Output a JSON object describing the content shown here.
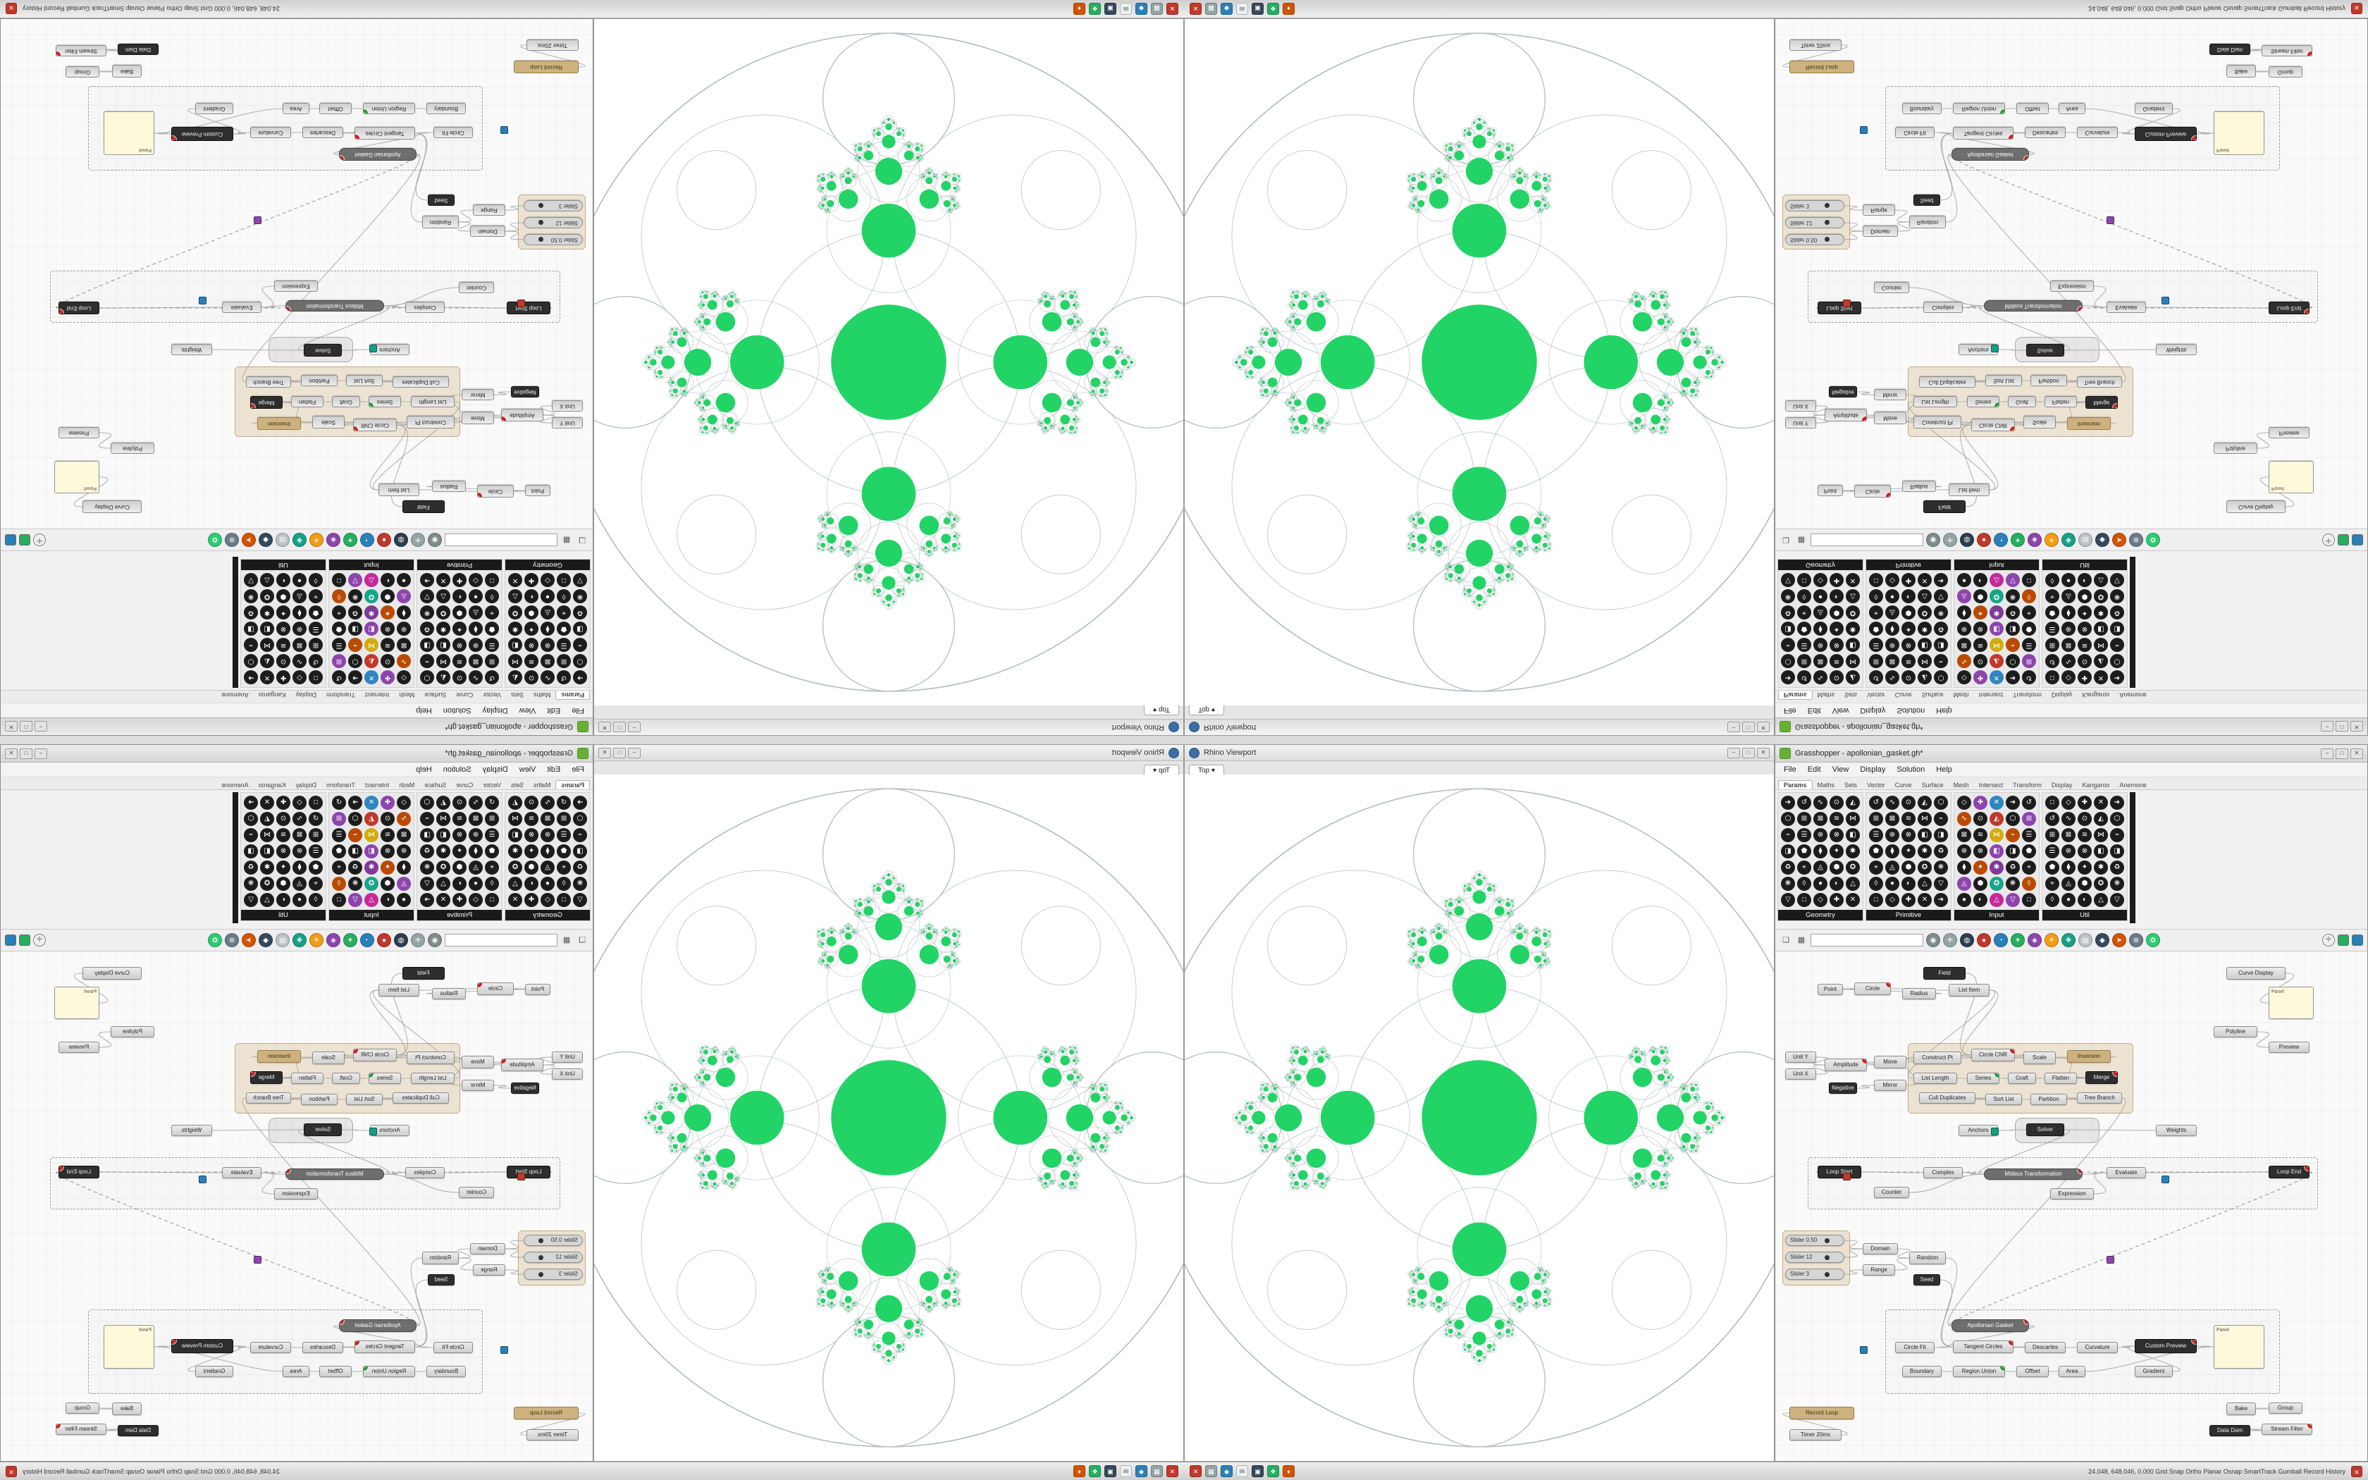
{
  "os_strip": {
    "taskbar_icons": [
      {
        "name": "app-red",
        "color": "#c0392b",
        "glyph": "✕"
      },
      {
        "name": "app-gray",
        "color": "#95a5a6",
        "glyph": "▦"
      },
      {
        "name": "app-blue",
        "color": "#2980b9",
        "glyph": "◆"
      },
      {
        "name": "app-white",
        "color": "#ecf0f1",
        "glyph": "✉",
        "fg": "#555"
      },
      {
        "name": "app-navy",
        "color": "#34495e",
        "glyph": "▣"
      },
      {
        "name": "app-green",
        "color": "#27ae60",
        "glyph": "❖"
      },
      {
        "name": "app-orange",
        "color": "#d35400",
        "glyph": "♦"
      }
    ],
    "status_text": "24.048, 648.046, 0.000    Grid Snap   Ortho   Planar   Osnap   SmartTrack   Gumball   Record History",
    "close_glyph": "✕"
  },
  "rhino": {
    "window_title": "Rhino Viewport",
    "viewport_tab": "Top",
    "tab_caret": "▾",
    "window_buttons": [
      "–",
      "□",
      "✕"
    ]
  },
  "fractal": {
    "green": "#22d366",
    "ring_color": "#c7cdd0",
    "outer_ring_color": "#b4bbbe",
    "depth": 4
  },
  "grasshopper": {
    "window_title": "Grasshopper - apollonian_gasket.gh*",
    "window_buttons": [
      "–",
      "□",
      "✕"
    ],
    "menu": [
      "File",
      "Edit",
      "View",
      "Display",
      "Solution",
      "Help"
    ],
    "tabs": [
      "Params",
      "Maths",
      "Sets",
      "Vector",
      "Curve",
      "Surface",
      "Mesh",
      "Intersect",
      "Transform",
      "Display",
      "Kangaroo",
      "Anemone"
    ],
    "palette": {
      "groups": [
        {
          "label": "Geometry",
          "rows": 7,
          "cols": 5,
          "style": "dark"
        },
        {
          "label": "Primitive",
          "rows": 7,
          "cols": 5,
          "style": "dark"
        },
        {
          "label": "Input",
          "rows": 7,
          "cols": 5,
          "style": "color"
        },
        {
          "label": "Util",
          "rows": 7,
          "cols": 5,
          "style": "dark"
        }
      ],
      "glyphs": [
        "●",
        "◐",
        "△",
        "▽",
        "□",
        "◇",
        "✚",
        "✕",
        "➔",
        "↺",
        "∿",
        "⊙",
        "◭",
        "⬡",
        "⊞",
        "⊠",
        "≋",
        "⋈",
        "⌁",
        "☰",
        "⊕",
        "⊗",
        "◧",
        "◨",
        "⬟",
        "⧫",
        "✦",
        "✱",
        "♻",
        "⌖",
        "◬",
        "⬢",
        "✪",
        "❋",
        "◊"
      ],
      "color_set": [
        "#c4299b",
        "#8e44ad",
        "#2e86c1",
        "#17a589",
        "#d4ac0d",
        "#ba4a00",
        "#7d3c98",
        "#c0392b"
      ]
    },
    "toolbar": {
      "open_glyph": "❏",
      "save_glyph": "▦",
      "search_value": "",
      "buttons": [
        {
          "color": "#7f8c8d",
          "glyph": "◉"
        },
        {
          "color": "#95a5a6",
          "glyph": "✛"
        },
        {
          "color": "#2c3e50",
          "glyph": "◍"
        },
        {
          "color": "#c0392b",
          "glyph": "●"
        },
        {
          "color": "#2980b9",
          "glyph": "◔"
        },
        {
          "color": "#27ae60",
          "glyph": "✦"
        },
        {
          "color": "#8e44ad",
          "glyph": "◈"
        },
        {
          "color": "#f39c12",
          "glyph": "☀"
        },
        {
          "color": "#16a085",
          "glyph": "❖"
        },
        {
          "color": "#bdc3c7",
          "glyph": "▤"
        },
        {
          "color": "#34495e",
          "glyph": "◆"
        },
        {
          "color": "#d35400",
          "glyph": "➤"
        },
        {
          "color": "#6c7a89",
          "glyph": "⊕"
        },
        {
          "color": "#2ecc71",
          "glyph": "✿"
        }
      ],
      "compass_glyph": "✛",
      "swatches": [
        "#27ae60",
        "#2980b9"
      ]
    }
  },
  "graph": {
    "nodes": [
      [
        210,
        22,
        60,
        18,
        "Field",
        "k"
      ],
      [
        60,
        46,
        36,
        16,
        "Point",
        "d"
      ],
      [
        112,
        44,
        52,
        18,
        "Circle",
        "d"
      ],
      [
        180,
        52,
        48,
        16,
        "Radius",
        "d"
      ],
      [
        246,
        46,
        58,
        18,
        "List Item",
        "d"
      ],
      [
        640,
        22,
        84,
        18,
        "Curve Display",
        "d"
      ],
      [
        700,
        50,
        64,
        46,
        "Panel",
        "p"
      ],
      [
        622,
        106,
        62,
        16,
        "Polyline",
        "d"
      ],
      [
        700,
        128,
        58,
        16,
        "Preview",
        "d"
      ],
      [
        14,
        142,
        44,
        16,
        "Unit Y",
        "d"
      ],
      [
        14,
        166,
        44,
        16,
        "Unit X",
        "d"
      ],
      [
        70,
        152,
        60,
        18,
        "Amplitude",
        "d"
      ],
      [
        76,
        186,
        40,
        16,
        "Negative",
        "k"
      ],
      [
        140,
        148,
        46,
        18,
        "Move",
        "d"
      ],
      [
        140,
        182,
        46,
        16,
        "Mirror",
        "d"
      ],
      [
        196,
        142,
        68,
        18,
        "Construct Pt",
        "d"
      ],
      [
        278,
        138,
        62,
        18,
        "Circle CNR",
        "d"
      ],
      [
        352,
        142,
        46,
        18,
        "Scale",
        "d"
      ],
      [
        414,
        140,
        62,
        18,
        "Inversion",
        "t"
      ],
      [
        196,
        172,
        62,
        16,
        "List Length",
        "d"
      ],
      [
        272,
        172,
        46,
        16,
        "Series",
        "d"
      ],
      [
        330,
        172,
        40,
        16,
        "Graft",
        "d"
      ],
      [
        382,
        172,
        46,
        16,
        "Flatten",
        "d"
      ],
      [
        440,
        170,
        46,
        18,
        "Merge",
        "k"
      ],
      [
        204,
        200,
        80,
        16,
        "Cull Duplicates",
        "d"
      ],
      [
        298,
        202,
        52,
        16,
        "Sort List",
        "d"
      ],
      [
        362,
        202,
        52,
        16,
        "Partition",
        "d"
      ],
      [
        428,
        200,
        64,
        16,
        "Tree Branch",
        "d"
      ],
      [
        356,
        244,
        54,
        18,
        "Solver",
        "k"
      ],
      [
        60,
        304,
        62,
        18,
        "Loop Start",
        "k"
      ],
      [
        210,
        306,
        56,
        16,
        "Complex",
        "d"
      ],
      [
        296,
        308,
        140,
        16,
        "Möbius Transformation",
        "b"
      ],
      [
        470,
        306,
        56,
        16,
        "Evaluate",
        "d"
      ],
      [
        700,
        304,
        58,
        18,
        "Loop End",
        "k"
      ],
      [
        140,
        334,
        50,
        16,
        "Counter",
        "d"
      ],
      [
        390,
        336,
        62,
        16,
        "Expression",
        "d"
      ],
      [
        14,
        402,
        84,
        16,
        "Slider 0.50",
        "s"
      ],
      [
        14,
        426,
        84,
        16,
        "Slider 12",
        "s"
      ],
      [
        14,
        450,
        84,
        16,
        "Slider 3",
        "s"
      ],
      [
        124,
        414,
        50,
        16,
        "Domain",
        "d"
      ],
      [
        124,
        444,
        46,
        16,
        "Range",
        "d"
      ],
      [
        190,
        426,
        52,
        18,
        "Random",
        "d"
      ],
      [
        196,
        458,
        38,
        16,
        "Seed",
        "k"
      ],
      [
        250,
        522,
        110,
        18,
        "Apollonian Gasket",
        "b"
      ],
      [
        170,
        554,
        56,
        16,
        "Circle Fit",
        "d"
      ],
      [
        252,
        552,
        86,
        18,
        "Tangent Circles",
        "d"
      ],
      [
        354,
        554,
        58,
        16,
        "Descartes",
        "d"
      ],
      [
        428,
        554,
        58,
        16,
        "Curvature",
        "d"
      ],
      [
        180,
        588,
        56,
        16,
        "Boundary",
        "d"
      ],
      [
        252,
        588,
        74,
        16,
        "Region Union",
        "d"
      ],
      [
        342,
        588,
        46,
        16,
        "Offset",
        "d"
      ],
      [
        402,
        588,
        38,
        16,
        "Area",
        "d"
      ],
      [
        510,
        550,
        88,
        20,
        "Custom Preview",
        "k"
      ],
      [
        510,
        588,
        54,
        16,
        "Gradient",
        "d"
      ],
      [
        622,
        530,
        72,
        62,
        "Panel",
        "p"
      ],
      [
        640,
        640,
        42,
        18,
        "Bake",
        "d"
      ],
      [
        700,
        640,
        48,
        16,
        "Group",
        "d"
      ],
      [
        616,
        672,
        58,
        16,
        "Data Dam",
        "k"
      ],
      [
        690,
        670,
        72,
        16,
        "Stream Filter",
        "d"
      ],
      [
        20,
        646,
        92,
        18,
        "Record Loop",
        "t"
      ],
      [
        20,
        678,
        74,
        16,
        "Timer 20ms",
        "d"
      ],
      [
        540,
        246,
        58,
        16,
        "Weights",
        "d"
      ],
      [
        260,
        246,
        56,
        16,
        "Anchors",
        "d"
      ]
    ],
    "groups": [
      [
        188,
        130,
        320,
        100,
        "tan"
      ],
      [
        340,
        236,
        120,
        36,
        "gbox"
      ],
      [
        46,
        292,
        724,
        74,
        "dash"
      ],
      [
        156,
        508,
        560,
        120,
        "dash"
      ],
      [
        10,
        396,
        96,
        78,
        "tan"
      ]
    ],
    "wires": [
      [
        1,
        2
      ],
      [
        3,
        2
      ],
      [
        2,
        4
      ],
      [
        0,
        16
      ],
      [
        4,
        16
      ],
      [
        15,
        16
      ],
      [
        16,
        17
      ],
      [
        17,
        23
      ],
      [
        18,
        17
      ],
      [
        19,
        20
      ],
      [
        20,
        21
      ],
      [
        21,
        23
      ],
      [
        22,
        23
      ],
      [
        24,
        25
      ],
      [
        25,
        26
      ],
      [
        26,
        27
      ],
      [
        27,
        43
      ],
      [
        9,
        11
      ],
      [
        10,
        11
      ],
      [
        11,
        13
      ],
      [
        12,
        14
      ],
      [
        13,
        15
      ],
      [
        14,
        15
      ],
      [
        29,
        30
      ],
      [
        30,
        31
      ],
      [
        31,
        32
      ],
      [
        32,
        33
      ],
      [
        34,
        31
      ],
      [
        35,
        32
      ],
      [
        62,
        28
      ],
      [
        28,
        61
      ],
      [
        28,
        31
      ],
      [
        36,
        39
      ],
      [
        37,
        39
      ],
      [
        38,
        40
      ],
      [
        39,
        41
      ],
      [
        40,
        41
      ],
      [
        41,
        45
      ],
      [
        42,
        45
      ],
      [
        43,
        45
      ],
      [
        44,
        45
      ],
      [
        45,
        46
      ],
      [
        46,
        47
      ],
      [
        47,
        52
      ],
      [
        48,
        49
      ],
      [
        49,
        50
      ],
      [
        50,
        51
      ],
      [
        51,
        54
      ],
      [
        53,
        52
      ],
      [
        52,
        54
      ],
      [
        55,
        56
      ],
      [
        57,
        58
      ],
      [
        60,
        59
      ],
      [
        4,
        19
      ],
      [
        33,
        29,
        1
      ],
      [
        33,
        43,
        1
      ],
      [
        5,
        6
      ],
      [
        7,
        8
      ]
    ],
    "badges": {
      "err": [
        2,
        16,
        23,
        31,
        33,
        43,
        45,
        52,
        58,
        11
      ],
      "ok": [
        20,
        49
      ]
    },
    "chips": [
      [
        306,
        250,
        "#16a085"
      ],
      [
        548,
        318,
        "#2980b9"
      ],
      [
        96,
        314,
        "#c0392b"
      ],
      [
        470,
        432,
        "#8e44ad"
      ],
      [
        120,
        560,
        "#2980b9"
      ]
    ]
  }
}
